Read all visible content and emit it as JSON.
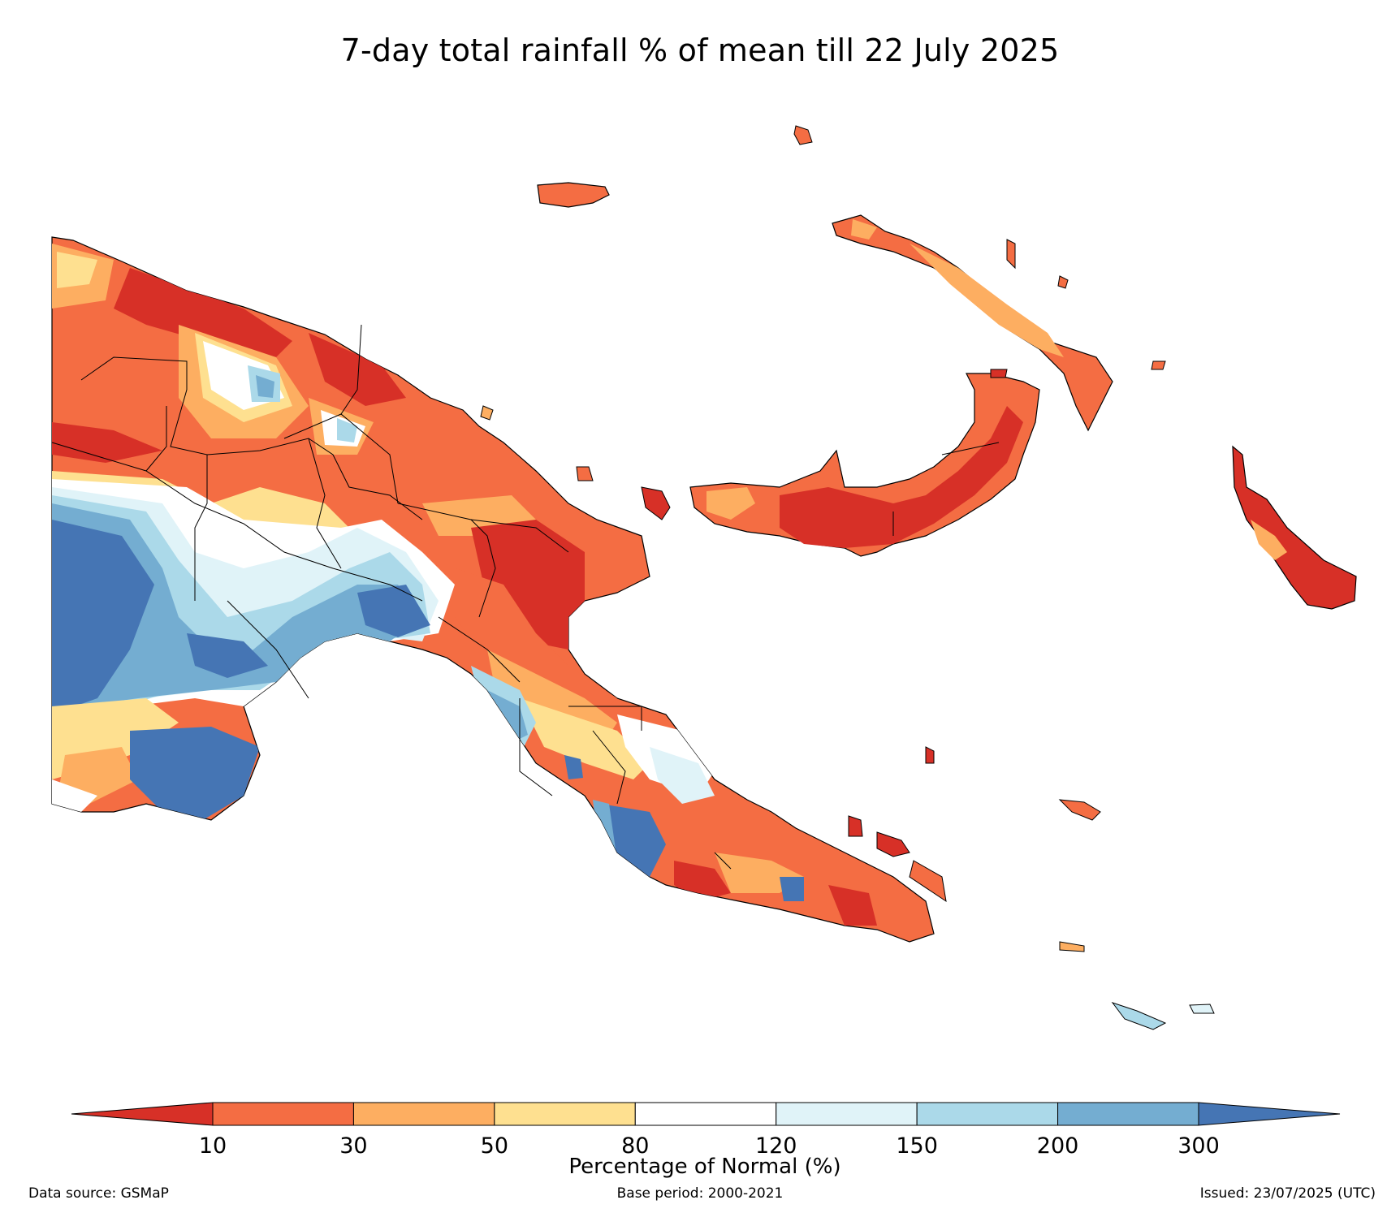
{
  "title": "7-day total rainfall % of mean till 22 July 2025",
  "colorbar": {
    "label": "Percentage of Normal (%)",
    "ticks": [
      "10",
      "30",
      "50",
      "80",
      "120",
      "150",
      "200",
      "300"
    ],
    "bins": [
      {
        "range": "<10",
        "color": "#d73027"
      },
      {
        "range": "10-30",
        "color": "#f46d43"
      },
      {
        "range": "30-50",
        "color": "#fdae61"
      },
      {
        "range": "50-80",
        "color": "#fee090"
      },
      {
        "range": "80-120",
        "color": "#ffffff"
      },
      {
        "range": "120-150",
        "color": "#e0f3f8"
      },
      {
        "range": "150-200",
        "color": "#abd9e9"
      },
      {
        "range": "200-300",
        "color": "#74add1"
      },
      {
        "range": ">300",
        "color": "#4575b4"
      }
    ]
  },
  "footer": {
    "source": "Data source: GSMaP",
    "base_period": "Base period: 2000-2021",
    "issued": "Issued: 23/07/2025 (UTC)"
  }
}
